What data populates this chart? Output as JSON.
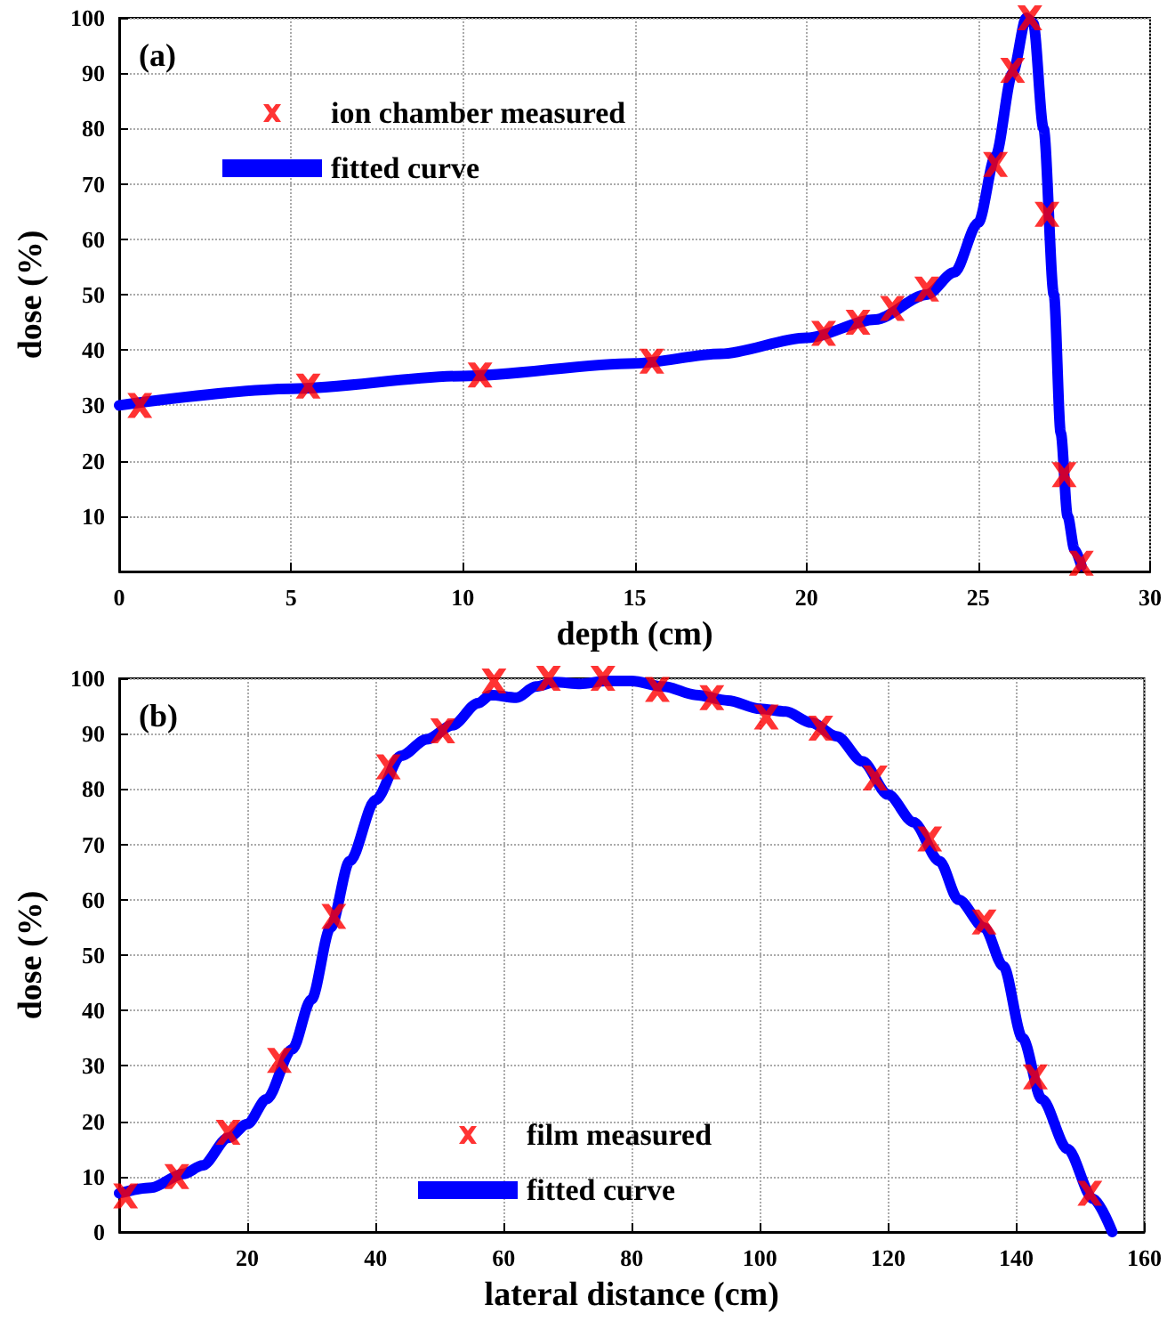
{
  "chart_data": [
    {
      "type": "scatter",
      "xlabel": "depth (cm)",
      "ylabel": "dose (%)",
      "annotations": [
        "(a)"
      ],
      "xlim": [
        0,
        30
      ],
      "ylim": [
        0,
        100
      ],
      "xticks": [
        0,
        5,
        10,
        15,
        20,
        25,
        30
      ],
      "yticks": [
        10,
        20,
        30,
        40,
        50,
        60,
        70,
        80,
        90,
        100
      ],
      "grid": true,
      "legend": "top left",
      "series": [
        {
          "name": "ion chamber measured",
          "type": "scatter",
          "marker": "cross",
          "color": "#ff0000",
          "x": [
            0.6,
            5.5,
            10.5,
            15.5,
            20.5,
            21.5,
            22.5,
            23.5,
            25.5,
            26,
            26.5,
            27,
            27.5,
            28
          ],
          "values": [
            30,
            33.5,
            35.5,
            38,
            43,
            45,
            47.5,
            51,
            73.5,
            90.5,
            100,
            64.5,
            17.5,
            1.5
          ]
        },
        {
          "name": "fitted curve",
          "type": "line",
          "marker": "none",
          "color": "#0000ff",
          "x": [
            0,
            5,
            10,
            15,
            17.5,
            20,
            22,
            23.5,
            24.3,
            25,
            25.5,
            26,
            26.4,
            26.6,
            26.9,
            27.2,
            27.4,
            27.6,
            27.8,
            28
          ],
          "values": [
            30,
            33,
            35.3,
            37.6,
            39.3,
            42.2,
            45.5,
            50,
            54,
            63,
            75,
            90,
            100,
            99,
            80,
            50,
            25,
            10,
            4,
            1
          ]
        }
      ]
    },
    {
      "type": "scatter",
      "xlabel": "lateral distance (cm)",
      "ylabel": "dose (%)",
      "annotations": [
        "(b)"
      ],
      "xlim": [
        0,
        160
      ],
      "ylim": [
        0,
        100
      ],
      "xticks": [
        20,
        40,
        60,
        80,
        100,
        120,
        140,
        160
      ],
      "yticks": [
        0,
        10,
        20,
        30,
        40,
        50,
        60,
        70,
        80,
        90,
        100
      ],
      "grid": true,
      "legend": "bottom",
      "series": [
        {
          "name": "film measured",
          "type": "scatter",
          "marker": "cross",
          "color": "#ff0000",
          "x": [
            1,
            9,
            17,
            25,
            33.5,
            42,
            50.5,
            58.5,
            67,
            75.5,
            84,
            92.5,
            101,
            109.5,
            118,
            126.5,
            135,
            143,
            151.5
          ],
          "values": [
            6.5,
            10,
            18,
            31,
            57,
            84,
            90.5,
            99.5,
            100,
            100,
            98,
            96.5,
            93,
            91,
            82,
            71,
            56,
            28,
            7
          ]
        },
        {
          "name": "fitted curve",
          "type": "line",
          "marker": "none",
          "color": "#0000ff",
          "x": [
            0,
            5,
            10,
            13,
            17,
            20,
            23,
            27,
            30,
            33,
            36,
            40,
            44,
            48,
            52,
            56,
            58,
            62,
            65,
            68,
            72,
            76,
            80,
            85,
            90,
            95,
            100,
            104,
            108,
            112,
            116,
            120,
            124,
            128,
            131,
            135,
            138,
            141,
            144,
            148,
            152,
            155
          ],
          "values": [
            7,
            8,
            10.5,
            12,
            17,
            19.5,
            24,
            33,
            42,
            55,
            67,
            78,
            86,
            89,
            91.5,
            95.5,
            97,
            96.5,
            98.5,
            99.3,
            99,
            99.5,
            99.5,
            98.5,
            97,
            96,
            94.5,
            94,
            92,
            89.5,
            85,
            79,
            74,
            67,
            60,
            55,
            48,
            35,
            24,
            15,
            6,
            0
          ]
        }
      ]
    }
  ]
}
